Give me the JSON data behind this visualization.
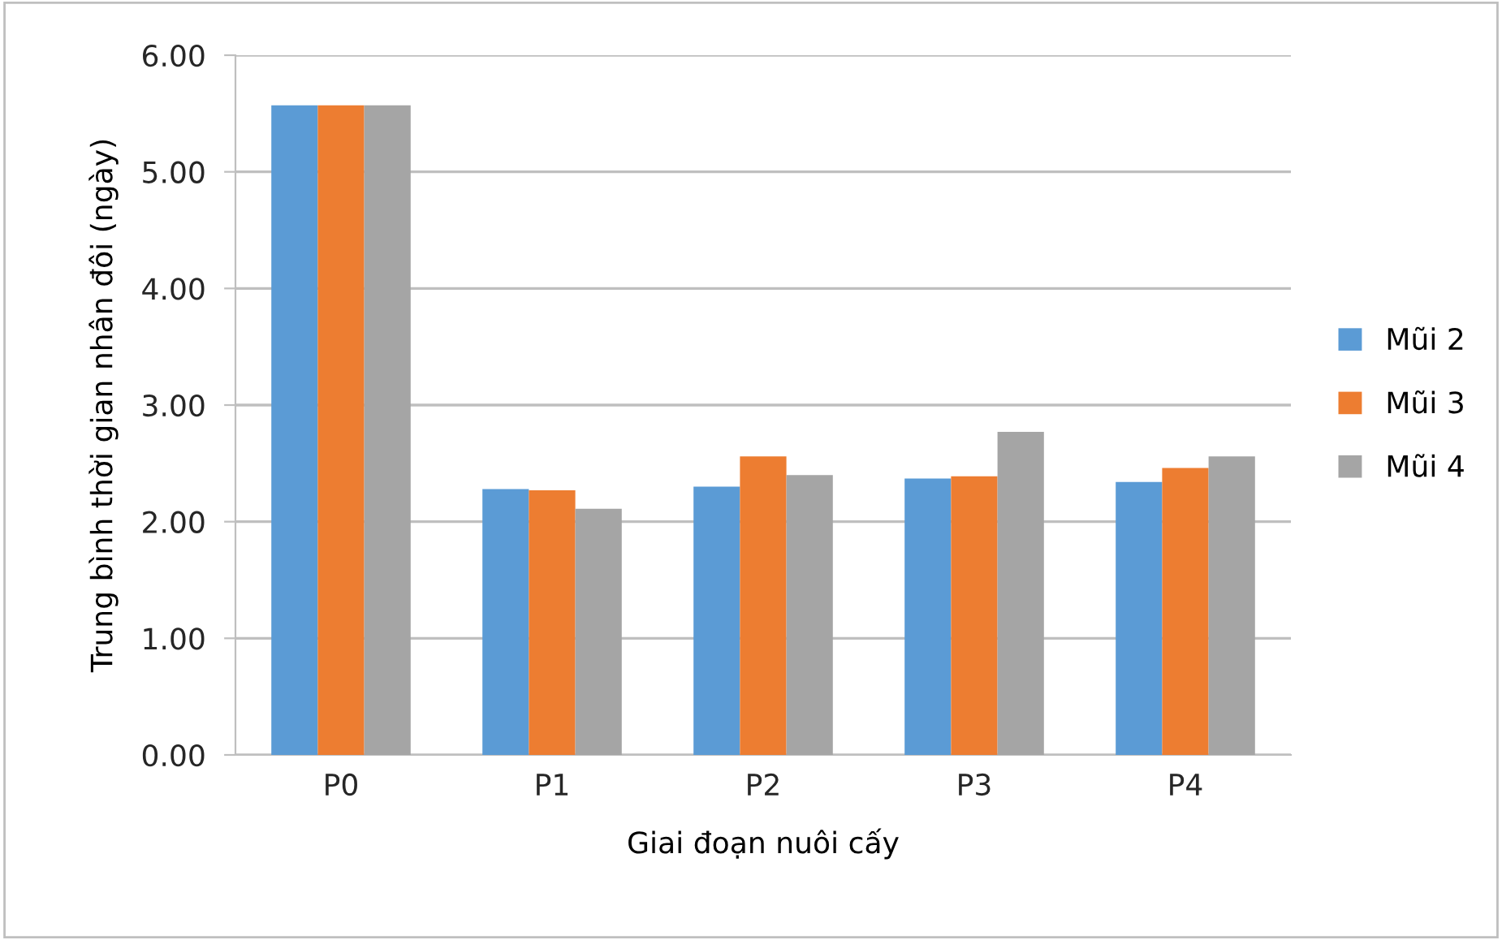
{
  "chart_data": {
    "type": "bar",
    "xlabel": "Giai đoạn nuôi cấy",
    "ylabel": "Trung bình thời gian nhân đôi (ngày)",
    "categories": [
      "P0",
      "P1",
      "P2",
      "P3",
      "P4"
    ],
    "series": [
      {
        "name": "Mũi 2",
        "color": "#5b9bd5",
        "values": [
          5.57,
          2.28,
          2.3,
          2.37,
          2.34
        ]
      },
      {
        "name": "Mũi 3",
        "color": "#ed7d31",
        "values": [
          5.57,
          2.27,
          2.56,
          2.39,
          2.46
        ]
      },
      {
        "name": "Mũi 4",
        "color": "#a5a5a5",
        "values": [
          5.57,
          2.11,
          2.4,
          2.77,
          2.56
        ]
      }
    ],
    "ylim": [
      0,
      6
    ],
    "yticks": [
      {
        "value": 0,
        "label": "0.00"
      },
      {
        "value": 1,
        "label": "1.00"
      },
      {
        "value": 2,
        "label": "2.00"
      },
      {
        "value": 3,
        "label": "3.00"
      },
      {
        "value": 4,
        "label": "4.00"
      },
      {
        "value": 5,
        "label": "5.00"
      },
      {
        "value": 6,
        "label": "6.00"
      }
    ],
    "grid": "y",
    "legend": "right"
  }
}
